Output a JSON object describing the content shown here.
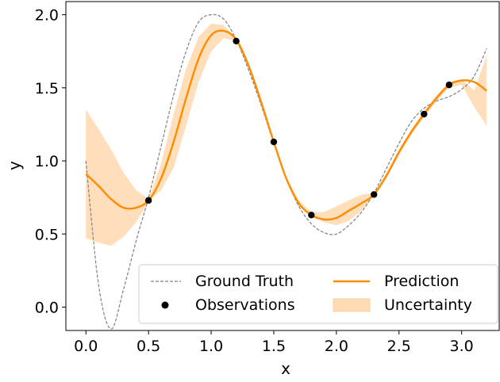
{
  "chart_data": {
    "type": "line",
    "xlabel": "x",
    "ylabel": "y",
    "xlim": [
      -0.16,
      3.3
    ],
    "ylim": [
      -0.16,
      2.09
    ],
    "xticks": [
      0.0,
      0.5,
      1.0,
      1.5,
      2.0,
      2.5,
      3.0
    ],
    "xtick_labels": [
      "0.0",
      "0.5",
      "1.0",
      "1.5",
      "2.0",
      "2.5",
      "3.0"
    ],
    "yticks": [
      0.0,
      0.5,
      1.0,
      1.5,
      2.0
    ],
    "ytick_labels": [
      "0.0",
      "0.5",
      "1.0",
      "1.5",
      "2.0"
    ],
    "grid": false,
    "legend_position": "lower-right",
    "series": [
      {
        "name": "Ground Truth",
        "style": "dashed",
        "color": "#808080",
        "x": [
          0.0,
          0.1,
          0.2,
          0.3,
          0.4,
          0.5,
          0.6,
          0.7,
          0.8,
          0.9,
          1.0,
          1.1,
          1.2,
          1.3,
          1.4,
          1.5,
          1.6,
          1.7,
          1.8,
          1.9,
          2.0,
          2.1,
          2.2,
          2.3,
          2.4,
          2.5,
          2.6,
          2.7,
          2.8,
          2.9,
          3.0,
          3.1,
          3.2
        ],
        "y": [
          1.0,
          0.16,
          -0.15,
          0.12,
          0.45,
          0.75,
          1.1,
          1.45,
          1.75,
          1.95,
          2.0,
          1.97,
          1.83,
          1.62,
          1.38,
          1.12,
          0.88,
          0.69,
          0.57,
          0.51,
          0.5,
          0.56,
          0.65,
          0.78,
          0.95,
          1.12,
          1.27,
          1.36,
          1.41,
          1.44,
          1.49,
          1.58,
          1.77
        ]
      },
      {
        "name": "Prediction",
        "style": "solid",
        "color": "#ff8c00",
        "x": [
          0.0,
          0.1,
          0.2,
          0.3,
          0.4,
          0.5,
          0.6,
          0.7,
          0.8,
          0.9,
          1.0,
          1.1,
          1.2,
          1.3,
          1.4,
          1.5,
          1.6,
          1.7,
          1.8,
          1.9,
          2.0,
          2.1,
          2.2,
          2.3,
          2.4,
          2.5,
          2.6,
          2.7,
          2.8,
          2.9,
          3.0,
          3.1,
          3.2
        ],
        "y": [
          0.91,
          0.83,
          0.74,
          0.68,
          0.68,
          0.73,
          0.88,
          1.13,
          1.43,
          1.7,
          1.86,
          1.89,
          1.83,
          1.65,
          1.4,
          1.13,
          0.88,
          0.71,
          0.63,
          0.6,
          0.61,
          0.66,
          0.71,
          0.77,
          0.9,
          1.06,
          1.2,
          1.32,
          1.43,
          1.52,
          1.55,
          1.54,
          1.48
        ]
      },
      {
        "name": "Uncertainty",
        "type": "band",
        "color": "#ffdcb4",
        "x": [
          0.0,
          0.1,
          0.2,
          0.3,
          0.4,
          0.5,
          0.6,
          0.7,
          0.8,
          0.9,
          1.0,
          1.1,
          1.2,
          1.3,
          1.4,
          1.5,
          1.6,
          1.7,
          1.8,
          1.9,
          2.0,
          2.1,
          2.2,
          2.3,
          2.4,
          2.5,
          2.6,
          2.7,
          2.8,
          2.9,
          3.0,
          3.1,
          3.2
        ],
        "upper": [
          1.35,
          1.22,
          1.08,
          0.92,
          0.8,
          0.74,
          0.98,
          1.32,
          1.63,
          1.85,
          1.94,
          1.93,
          1.84,
          1.66,
          1.41,
          1.14,
          0.89,
          0.73,
          0.65,
          0.65,
          0.69,
          0.73,
          0.77,
          0.78,
          0.92,
          1.08,
          1.22,
          1.34,
          1.45,
          1.54,
          1.56,
          1.48,
          1.72
        ],
        "lower": [
          0.47,
          0.44,
          0.42,
          0.48,
          0.58,
          0.72,
          0.8,
          0.95,
          1.24,
          1.54,
          1.75,
          1.84,
          1.82,
          1.64,
          1.39,
          1.12,
          0.87,
          0.69,
          0.62,
          0.58,
          0.56,
          0.59,
          0.66,
          0.76,
          0.88,
          1.04,
          1.18,
          1.3,
          1.41,
          1.5,
          1.52,
          1.37,
          1.24
        ]
      },
      {
        "name": "Observations",
        "type": "scatter",
        "color": "#000000",
        "x": [
          0.5,
          1.2,
          1.5,
          1.8,
          2.3,
          2.7,
          2.9
        ],
        "y": [
          0.73,
          1.82,
          1.13,
          0.63,
          0.77,
          1.32,
          1.52
        ]
      }
    ]
  },
  "legend": {
    "entries": [
      {
        "label": "Ground Truth",
        "symbol": "dashed-line"
      },
      {
        "label": "Prediction",
        "symbol": "solid-line"
      },
      {
        "label": "Observations",
        "symbol": "dot"
      },
      {
        "label": "Uncertainty",
        "symbol": "filled-patch"
      }
    ]
  }
}
